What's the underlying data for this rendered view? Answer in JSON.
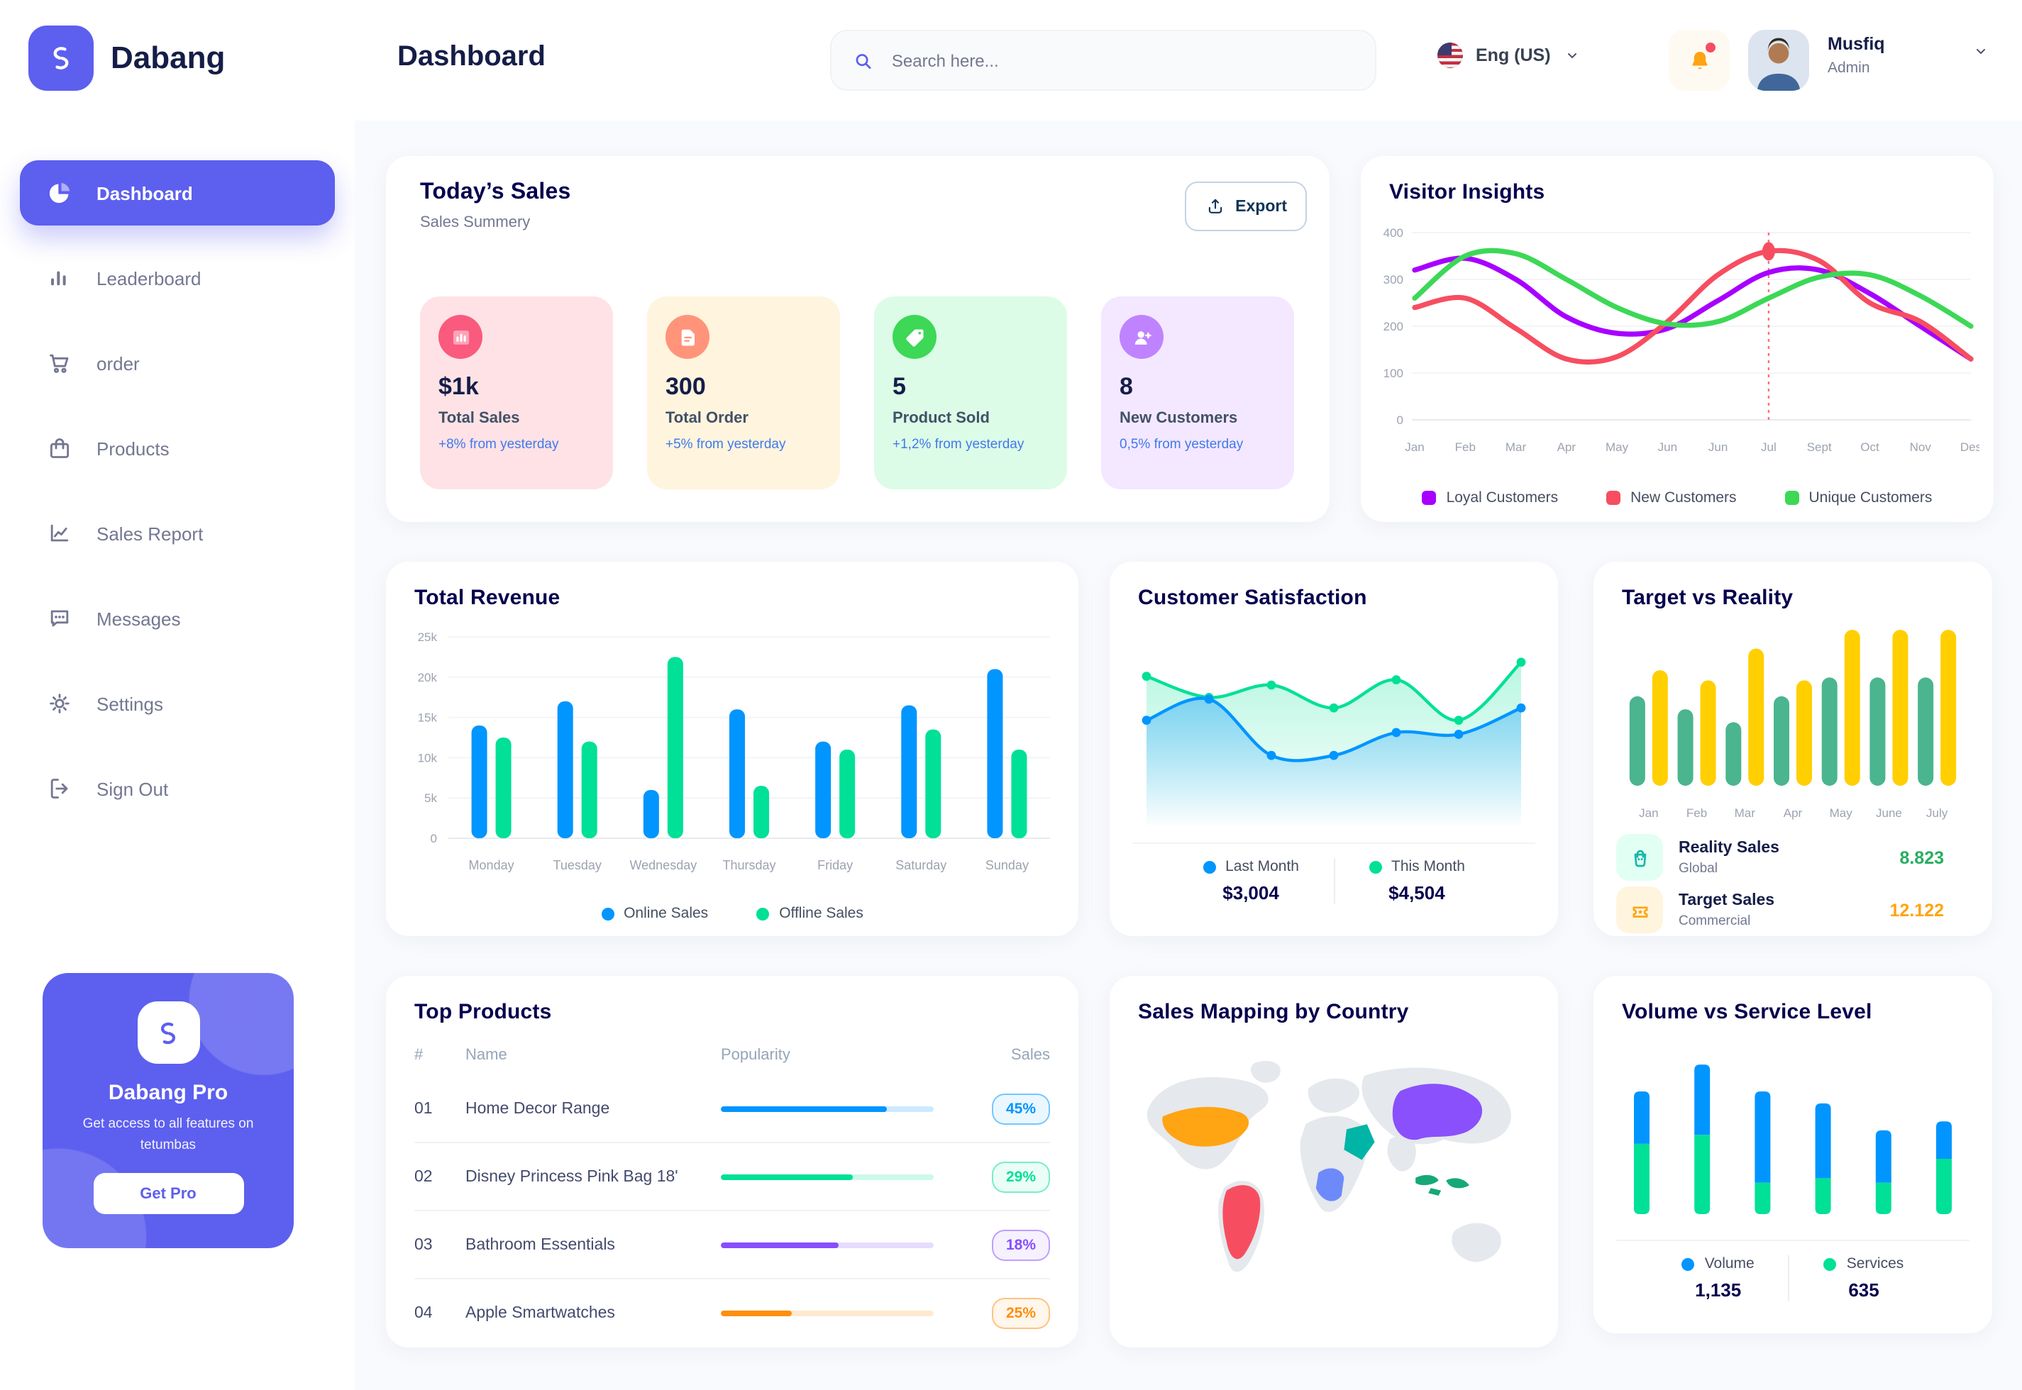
{
  "app": {
    "brand": "Dabang",
    "page_title": "Dashboard"
  },
  "header": {
    "search_placeholder": "Search here...",
    "language": "Eng (US)",
    "user_name": "Musfiq",
    "user_role": "Admin"
  },
  "sidebar": {
    "items": [
      {
        "label": "Dashboard",
        "icon": "pie-chart-icon",
        "active": true
      },
      {
        "label": "Leaderboard",
        "icon": "bar-chart-icon",
        "active": false
      },
      {
        "label": "order",
        "icon": "cart-icon",
        "active": false
      },
      {
        "label": "Products",
        "icon": "bag-icon",
        "active": false
      },
      {
        "label": "Sales Report",
        "icon": "line-chart-icon",
        "active": false
      },
      {
        "label": "Messages",
        "icon": "message-icon",
        "active": false
      },
      {
        "label": "Settings",
        "icon": "gear-icon",
        "active": false
      },
      {
        "label": "Sign Out",
        "icon": "sign-out-icon",
        "active": false
      }
    ],
    "promo": {
      "title": "Dabang Pro",
      "subtitle": "Get access to all features on tetumbas",
      "button": "Get Pro"
    }
  },
  "today_sales": {
    "title": "Today’s Sales",
    "subtitle": "Sales Summery",
    "export_label": "Export",
    "cards": [
      {
        "value": "$1k",
        "label": "Total Sales",
        "delta": "+8% from yesterday",
        "bg": "#FFE2E5",
        "icon_bg": "#FA5A7D",
        "icon": "stats-icon"
      },
      {
        "value": "300",
        "label": "Total Order",
        "delta": "+5% from yesterday",
        "bg": "#FFF4DE",
        "icon_bg": "#FF947A",
        "icon": "order-icon"
      },
      {
        "value": "5",
        "label": "Product Sold",
        "delta": "+1,2% from yesterday",
        "bg": "#DCFCE7",
        "icon_bg": "#3CD856",
        "icon": "tag-icon"
      },
      {
        "value": "8",
        "label": "New Customers",
        "delta": "0,5% from yesterday",
        "bg": "#F3E8FF",
        "icon_bg": "#BF83FF",
        "icon": "new-user-icon"
      }
    ]
  },
  "top_products": {
    "title": "Top Products",
    "columns": [
      "#",
      "Name",
      "Popularity",
      "Sales"
    ],
    "rows": [
      {
        "num": "01",
        "name": "Home Decor Range",
        "popularity": 78,
        "sales": "45%",
        "color": "#0095FF"
      },
      {
        "num": "02",
        "name": "Disney Princess Pink Bag 18'",
        "popularity": 62,
        "sales": "29%",
        "color": "#00E096"
      },
      {
        "num": "03",
        "name": "Bathroom Essentials",
        "popularity": 55,
        "sales": "18%",
        "color": "#884DFF"
      },
      {
        "num": "04",
        "name": "Apple Smartwatches",
        "popularity": 33,
        "sales": "25%",
        "color": "#FF8F0D"
      }
    ]
  },
  "chart_data": [
    {
      "id": "visitor_insights",
      "type": "line",
      "title": "Visitor Insights",
      "categories": [
        "Jan",
        "Feb",
        "Mar",
        "Apr",
        "May",
        "Jun",
        "Jun",
        "Jul",
        "Sept",
        "Oct",
        "Nov",
        "Des"
      ],
      "series": [
        {
          "name": "Loyal Customers",
          "color": "#A700FF",
          "values": [
            320,
            345,
            300,
            220,
            185,
            195,
            255,
            315,
            320,
            270,
            200,
            130
          ]
        },
        {
          "name": "New Customers",
          "color": "#F64E60",
          "values": [
            240,
            260,
            195,
            130,
            135,
            210,
            310,
            360,
            340,
            250,
            210,
            130
          ]
        },
        {
          "name": "Unique Customers",
          "color": "#3CD856",
          "values": [
            260,
            350,
            355,
            300,
            240,
            205,
            210,
            260,
            305,
            310,
            265,
            200
          ]
        }
      ],
      "ylim": [
        0,
        400
      ],
      "yticks": [
        0,
        100,
        200,
        300,
        400
      ],
      "highlight": {
        "category_index": 7,
        "series": "New Customers",
        "value": 360
      },
      "legend_position": "bottom",
      "grid": true
    },
    {
      "id": "total_revenue",
      "type": "bar",
      "title": "Total Revenue",
      "categories": [
        "Monday",
        "Tuesday",
        "Wednesday",
        "Thursday",
        "Friday",
        "Saturday",
        "Sunday"
      ],
      "series": [
        {
          "name": "Online Sales",
          "color": "#0095FF",
          "values": [
            14,
            17,
            6,
            16,
            12,
            16.5,
            21
          ]
        },
        {
          "name": "Offline Sales",
          "color": "#00E096",
          "values": [
            12.5,
            12,
            22.5,
            6.5,
            11,
            13.5,
            11
          ]
        }
      ],
      "ylim": [
        0,
        25
      ],
      "yticks": [
        0,
        5,
        10,
        15,
        20,
        25
      ],
      "ytick_labels": [
        "0",
        "5k",
        "10k",
        "15k",
        "20k",
        "25k"
      ],
      "legend_position": "bottom",
      "grid": true
    },
    {
      "id": "customer_satisfaction",
      "type": "area",
      "title": "Customer Satisfaction",
      "series": [
        {
          "name": "Last Month",
          "color": "#0095FF",
          "total": "$3,004",
          "values": [
            55,
            67,
            35,
            35,
            48,
            47,
            62
          ]
        },
        {
          "name": "This Month",
          "color": "#00E096",
          "total": "$4,504",
          "values": [
            80,
            68,
            75,
            62,
            78,
            55,
            88
          ]
        }
      ],
      "ylim": [
        0,
        100
      ],
      "legend_position": "bottom",
      "grid": false
    },
    {
      "id": "target_vs_reality",
      "type": "bar",
      "title": "Target vs Reality",
      "categories": [
        "Jan",
        "Feb",
        "Mar",
        "Apr",
        "May",
        "June",
        "July"
      ],
      "series": [
        {
          "name": "Reality Sales",
          "color": "#4AB58E",
          "values": [
            6.2,
            5.3,
            4.4,
            6.2,
            7.5,
            7.5,
            7.5
          ]
        },
        {
          "name": "Target Sales",
          "color": "#FFCF00",
          "values": [
            8,
            7.3,
            9.5,
            7.3,
            10.8,
            10.8,
            10.8
          ]
        }
      ],
      "ylim": [
        0,
        11
      ],
      "legend": [
        {
          "name": "Reality Sales",
          "desc": "Global",
          "value": "8.823",
          "value_color": "#27AE60",
          "icon": "bag-small-icon",
          "icon_bg": "#E2FFF3"
        },
        {
          "name": "Target Sales",
          "desc": "Commercial",
          "value": "12.122",
          "value_color": "#FFA412",
          "icon": "ticket-icon",
          "icon_bg": "#FFF4DE"
        }
      ]
    },
    {
      "id": "sales_map",
      "type": "map",
      "title": "Sales Mapping by Country",
      "countries": [
        {
          "name": "United States",
          "color": "#FFA412"
        },
        {
          "name": "Brazil",
          "color": "#F64E60"
        },
        {
          "name": "Saudi Arabia",
          "color": "#00B5A5"
        },
        {
          "name": "DR Congo",
          "color": "#6E8AFA"
        },
        {
          "name": "China",
          "color": "#8950FC"
        },
        {
          "name": "Indonesia",
          "color": "#16A879"
        }
      ]
    },
    {
      "id": "volume_service",
      "type": "stacked-bar",
      "title": "Volume vs Service Level",
      "series": [
        {
          "name": "Volume",
          "color": "#0095FF",
          "total": "1,135",
          "values": [
            35,
            47,
            61,
            50,
            35,
            25
          ]
        },
        {
          "name": "Services",
          "color": "#00E096",
          "total": "635",
          "values": [
            47,
            53,
            21,
            24,
            21,
            37
          ]
        }
      ],
      "ylim": [
        0,
        110
      ],
      "legend_position": "bottom"
    }
  ],
  "colors": {
    "primary": "#5D5FEF",
    "title_navy": "#05004E",
    "text_dark": "#151D48",
    "text_gray": "#737791",
    "muted": "#96A5B8",
    "delta_blue": "#4079ED",
    "bell_orange": "#FFA412",
    "alert_red": "#F64E60",
    "page_bg": "#F9FAFD"
  }
}
